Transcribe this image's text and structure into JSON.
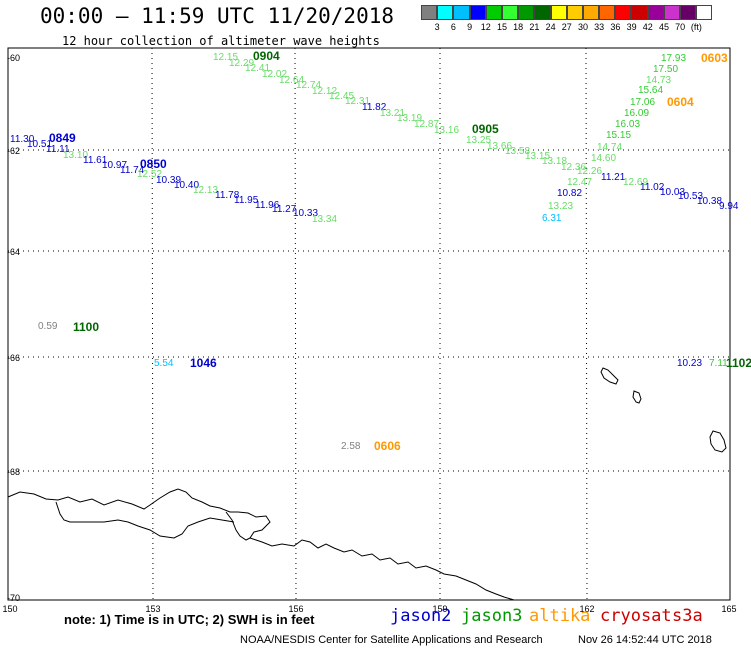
{
  "header": {
    "title": "00:00 – 11:59 UTC 11/20/2018",
    "subtitle": "12 hour collection of altimeter wave heights"
  },
  "color_scale": {
    "colors": [
      "#808080",
      "#00ffff",
      "#00bfff",
      "#0000ff",
      "#00cc00",
      "#33ff33",
      "#009900",
      "#006600",
      "#ffff00",
      "#ffcc00",
      "#ffaa00",
      "#ff6600",
      "#ff0000",
      "#cc0000",
      "#990099",
      "#cc33cc",
      "#660066",
      "#ffffff"
    ],
    "labels": [
      "3",
      "6",
      "9",
      "12",
      "15",
      "18",
      "21",
      "24",
      "27",
      "30",
      "33",
      "36",
      "39",
      "42",
      "45",
      "70",
      "(ft)"
    ]
  },
  "axes": {
    "lat_labels": [
      "-60",
      "-62",
      "-64",
      "-66",
      "-68",
      "-70"
    ],
    "lon_labels": [
      "150",
      "153",
      "156",
      "159",
      "162",
      "165"
    ]
  },
  "track_labels": [
    {
      "text": "0904",
      "color": "#006600"
    },
    {
      "text": "0849",
      "color": "#0000cc"
    },
    {
      "text": "0850",
      "color": "#0000cc"
    },
    {
      "text": "0905",
      "color": "#006600"
    },
    {
      "text": "0603",
      "color": "#ff9900"
    },
    {
      "text": "0604",
      "color": "#ff9900"
    },
    {
      "text": "1100",
      "color": "#006600"
    },
    {
      "text": "1046",
      "color": "#0000cc"
    },
    {
      "text": "0606",
      "color": "#ff9900"
    },
    {
      "text": "1102",
      "color": "#006600"
    }
  ],
  "swh_values": [
    {
      "text": "12.15",
      "color": "#66dd66"
    },
    {
      "text": "12.29",
      "color": "#66dd66"
    },
    {
      "text": "12.41",
      "color": "#66dd66"
    },
    {
      "text": "12.02",
      "color": "#66dd66"
    },
    {
      "text": "12.64",
      "color": "#66dd66"
    },
    {
      "text": "12.74",
      "color": "#66dd66"
    },
    {
      "text": "12.12",
      "color": "#66dd66"
    },
    {
      "text": "12.45",
      "color": "#66dd66"
    },
    {
      "text": "12.31",
      "color": "#66dd66"
    },
    {
      "text": "11.82",
      "color": "#0000cc"
    },
    {
      "text": "13.21",
      "color": "#66dd66"
    },
    {
      "text": "13.19",
      "color": "#66dd66"
    },
    {
      "text": "12.87",
      "color": "#66dd66"
    },
    {
      "text": "13.16",
      "color": "#66dd66"
    },
    {
      "text": "13.25",
      "color": "#66dd66"
    },
    {
      "text": "13.66",
      "color": "#66dd66"
    },
    {
      "text": "13.58",
      "color": "#66dd66"
    },
    {
      "text": "13.15",
      "color": "#66dd66"
    },
    {
      "text": "13.18",
      "color": "#66dd66"
    },
    {
      "text": "12.36",
      "color": "#66dd66"
    },
    {
      "text": "12.26",
      "color": "#66dd66"
    },
    {
      "text": "12.47",
      "color": "#66dd66"
    },
    {
      "text": "11.21",
      "color": "#0000cc"
    },
    {
      "text": "12.69",
      "color": "#66dd66"
    },
    {
      "text": "11.02",
      "color": "#0000cc"
    },
    {
      "text": "10.03",
      "color": "#0000cc"
    },
    {
      "text": "10.53",
      "color": "#0000cc"
    },
    {
      "text": "10.38",
      "color": "#0000cc"
    },
    {
      "text": "9.94",
      "color": "#0000cc"
    },
    {
      "text": "10.82",
      "color": "#0000cc"
    },
    {
      "text": "13.23",
      "color": "#66dd66"
    },
    {
      "text": "6.31",
      "color": "#00bfff"
    },
    {
      "text": "11.30",
      "color": "#0000cc"
    },
    {
      "text": "10.51",
      "color": "#0000cc"
    },
    {
      "text": "11.11",
      "color": "#0000cc"
    },
    {
      "text": "13.10",
      "color": "#66dd66"
    },
    {
      "text": "11.61",
      "color": "#0000cc"
    },
    {
      "text": "10.97",
      "color": "#0000cc"
    },
    {
      "text": "11.74",
      "color": "#0000cc"
    },
    {
      "text": "12.52",
      "color": "#66dd66"
    },
    {
      "text": "10.39",
      "color": "#0000cc"
    },
    {
      "text": "10.40",
      "color": "#0000cc"
    },
    {
      "text": "12.13",
      "color": "#66dd66"
    },
    {
      "text": "11.78",
      "color": "#0000cc"
    },
    {
      "text": "11.95",
      "color": "#0000cc"
    },
    {
      "text": "11.96",
      "color": "#0000cc"
    },
    {
      "text": "11.27",
      "color": "#0000cc"
    },
    {
      "text": "10.33",
      "color": "#0000cc"
    },
    {
      "text": "13.34",
      "color": "#66dd66"
    },
    {
      "text": "17.93",
      "color": "#33cc33"
    },
    {
      "text": "17.50",
      "color": "#33cc33"
    },
    {
      "text": "14.73",
      "color": "#66dd66"
    },
    {
      "text": "15.64",
      "color": "#33cc33"
    },
    {
      "text": "17.06",
      "color": "#33cc33"
    },
    {
      "text": "16.09",
      "color": "#33cc33"
    },
    {
      "text": "16.03",
      "color": "#33cc33"
    },
    {
      "text": "15.15",
      "color": "#33cc33"
    },
    {
      "text": "14.74",
      "color": "#66dd66"
    },
    {
      "text": "14.60",
      "color": "#66dd66"
    },
    {
      "text": "0.59",
      "color": "#808080"
    },
    {
      "text": "5.54",
      "color": "#00bfff"
    },
    {
      "text": "2.58",
      "color": "#808080"
    },
    {
      "text": "10.23",
      "color": "#0000cc"
    },
    {
      "text": "7.11",
      "color": "#33cc33"
    }
  ],
  "footer": {
    "note": "note: 1) Time is in UTC; 2) SWH is in feet",
    "satellites": [
      {
        "name": "jason2",
        "color": "#0000cc"
      },
      {
        "name": "jason3",
        "color": "#009900"
      },
      {
        "name": "altika",
        "color": "#ff9900"
      },
      {
        "name": "cryosat",
        "color": "#cc0000"
      },
      {
        "name": "s3a",
        "color": "#cc0000"
      }
    ],
    "credit": "NOAA/NESDIS Center for Satellite Applications and Research",
    "timestamp": "Nov 26 14:52:44 UTC 2018"
  }
}
